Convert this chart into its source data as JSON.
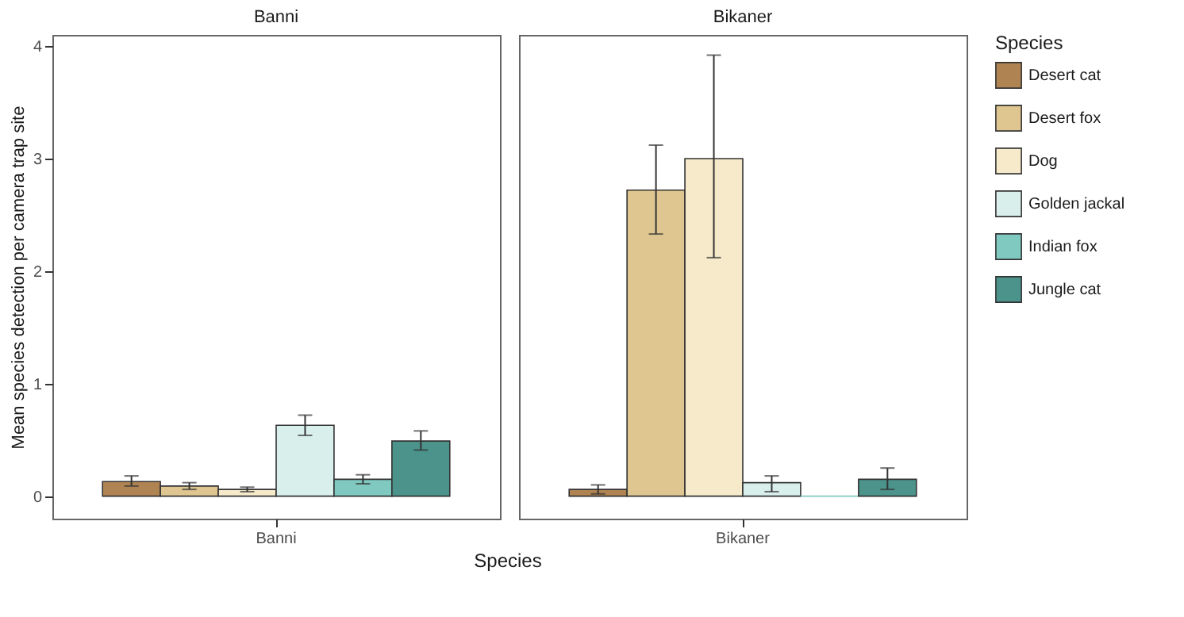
{
  "chart_data": {
    "type": "bar",
    "categories": [
      "Banni",
      "Bikaner"
    ],
    "annotations": [
      "Banni",
      "Bikaner"
    ],
    "xlabel": "Species",
    "ylabel": "Mean species detection per camera trap site",
    "ylim": [
      -0.2,
      4.1
    ],
    "yticks": [
      0,
      1,
      2,
      3,
      4
    ],
    "grid": false,
    "legend": "right",
    "legend_title": "Species",
    "series": [
      {
        "name": "Desert cat",
        "color": "#b08452",
        "values": [
          0.13,
          0.06
        ],
        "errors": [
          [
            0.09,
            0.18
          ],
          [
            0.02,
            0.1
          ]
        ]
      },
      {
        "name": "Desert fox",
        "color": "#dfc690",
        "values": [
          0.09,
          2.72
        ],
        "errors": [
          [
            0.06,
            0.12
          ],
          [
            2.33,
            3.12
          ]
        ]
      },
      {
        "name": "Dog",
        "color": "#f6eacb",
        "values": [
          0.06,
          3.0
        ],
        "errors": [
          [
            0.04,
            0.08
          ],
          [
            2.12,
            3.92
          ]
        ]
      },
      {
        "name": "Golden jackal",
        "color": "#d8efec",
        "values": [
          0.63,
          0.12
        ],
        "errors": [
          [
            0.54,
            0.72
          ],
          [
            0.04,
            0.18
          ]
        ]
      },
      {
        "name": "Indian fox",
        "color": "#80c9c0",
        "values": [
          0.15,
          0
        ],
        "errors": [
          [
            0.11,
            0.19
          ],
          null
        ]
      },
      {
        "name": "Jungle cat",
        "color": "#4b938b",
        "values": [
          0.49,
          0.15
        ],
        "errors": [
          [
            0.41,
            0.58
          ],
          [
            0.06,
            0.25
          ]
        ]
      }
    ]
  }
}
